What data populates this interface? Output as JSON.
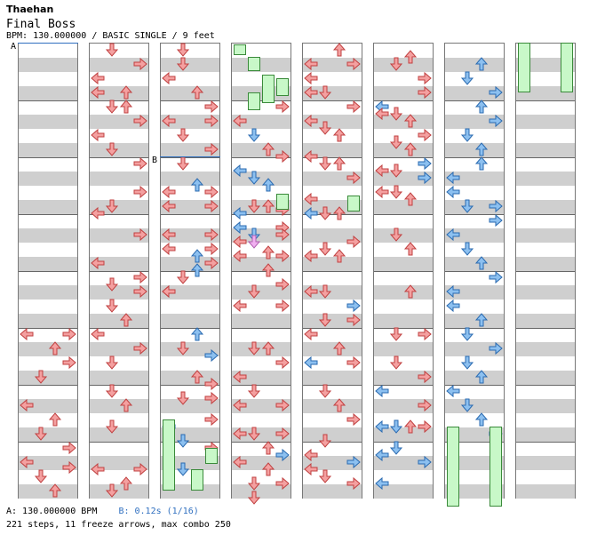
{
  "header": {
    "artist": "Thaehan",
    "title": "Final Boss",
    "info": "BPM: 130.000000 / BASIC SINGLE / 9 feet"
  },
  "markers": {
    "a": "A",
    "b": "B"
  },
  "footer": {
    "bpm_text": "A: 130.000000 BPM",
    "stop_text": "B: 0.12s (1/16)",
    "stats": "221 steps, 11 freeze arrows, max combo 250"
  },
  "colors": {
    "red_arrow": "#f4a0a0",
    "blue_arrow": "#8cc0f0",
    "pink_arrow": "#f0b0f0",
    "freeze": "#c8f8c8",
    "band": "#cfcfcf"
  },
  "chart_data": {
    "type": "table",
    "columns": 8,
    "measures_per_column": 8,
    "total_steps": 221,
    "freeze_arrows": 11,
    "max_combo": 250
  }
}
